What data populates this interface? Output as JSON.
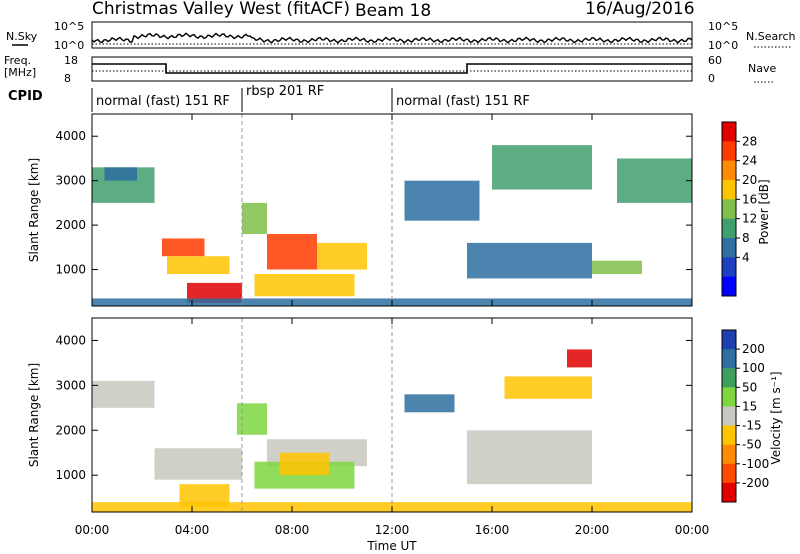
{
  "header": {
    "radar": "Christmas Valley West (fitACF)",
    "beam": "Beam 18",
    "date": "16/Aug/2016"
  },
  "top_panel": {
    "left_label": "N.Sky",
    "left_ticks": [
      "10^5",
      "10^0"
    ],
    "right_label": "N.Search",
    "right_ticks": [
      "10^5",
      "10^0"
    ]
  },
  "freq_panel": {
    "left_label_1": "Freq.",
    "left_label_2": "[MHz]",
    "left_ticks": [
      "18",
      "8"
    ],
    "right_label": "Nave",
    "right_ticks": [
      "60",
      "0"
    ]
  },
  "cpid": {
    "label": "CPID",
    "segments": [
      {
        "name": "normal (fast) 151 RF",
        "start_h": 0,
        "end_h": 6
      },
      {
        "name": "rbsp 201 RF",
        "start_h": 6,
        "end_h": 12
      },
      {
        "name": "normal (fast) 151 RF",
        "start_h": 12,
        "end_h": 24
      }
    ]
  },
  "axes": {
    "ylabel": "Slant Range [km]",
    "xlabel": "Time UT",
    "y_ticks": [
      "4000",
      "3000",
      "2000",
      "1000"
    ],
    "x_ticks": [
      "00:00",
      "04:00",
      "08:00",
      "12:00",
      "16:00",
      "20:00",
      "00:00"
    ]
  },
  "colorbars": {
    "power": {
      "label": "Power [dB]",
      "ticks": [
        "28",
        "24",
        "20",
        "16",
        "12",
        "8",
        "4"
      ],
      "colors": [
        "#e00000",
        "#ff3b00",
        "#ff8c00",
        "#ffc400",
        "#7fc04a",
        "#3f9f6f",
        "#2c6fa0",
        "#1e3fc0",
        "#0000ff"
      ]
    },
    "velocity": {
      "label": "Velocity [m s⁻¹]",
      "ticks": [
        "200",
        "100",
        "50",
        "15",
        "-15",
        "-50",
        "-100",
        "-200"
      ],
      "colors": [
        "#1f3fb0",
        "#2e6fa0",
        "#3f9f5f",
        "#7fd640",
        "#c8c8c0",
        "#ffc400",
        "#ff8c00",
        "#ff4a00",
        "#e00000"
      ]
    }
  },
  "chart_data": [
    {
      "type": "heatmap",
      "title": "Power [dB]",
      "xlabel": "Time UT",
      "ylabel": "Slant Range [km]",
      "xlim": [
        0,
        24
      ],
      "ylim": [
        180,
        4500
      ],
      "colorbar_range": [
        0,
        30
      ],
      "regions": [
        {
          "t0": 0.0,
          "t1": 2.5,
          "r0": 2500,
          "r1": 3300,
          "v": 12
        },
        {
          "t0": 0.5,
          "t1": 1.8,
          "r0": 3000,
          "r1": 3300,
          "v": 8
        },
        {
          "t0": 2.8,
          "t1": 4.5,
          "r0": 1300,
          "r1": 1700,
          "v": 26
        },
        {
          "t0": 3.0,
          "t1": 5.5,
          "r0": 900,
          "r1": 1300,
          "v": 20
        },
        {
          "t0": 3.8,
          "t1": 6.0,
          "r0": 250,
          "r1": 700,
          "v": 28
        },
        {
          "t0": 6.0,
          "t1": 7.0,
          "r0": 1800,
          "r1": 2500,
          "v": 16
        },
        {
          "t0": 7.0,
          "t1": 9.0,
          "r0": 1000,
          "r1": 1800,
          "v": 24
        },
        {
          "t0": 9.0,
          "t1": 11.0,
          "r0": 1000,
          "r1": 1600,
          "v": 18
        },
        {
          "t0": 6.5,
          "t1": 10.5,
          "r0": 400,
          "r1": 900,
          "v": 20
        },
        {
          "t0": 12.5,
          "t1": 15.5,
          "r0": 2100,
          "r1": 3000,
          "v": 10
        },
        {
          "t0": 15.0,
          "t1": 20.0,
          "r0": 800,
          "r1": 1600,
          "v": 10
        },
        {
          "t0": 16.0,
          "t1": 20.0,
          "r0": 2800,
          "r1": 3800,
          "v": 12
        },
        {
          "t0": 21.0,
          "t1": 24.0,
          "r0": 2500,
          "r1": 3500,
          "v": 12
        },
        {
          "t0": 20.0,
          "t1": 22.0,
          "r0": 900,
          "r1": 1200,
          "v": 16
        },
        {
          "t0": 0.0,
          "t1": 24.0,
          "r0": 180,
          "r1": 350,
          "v": 10
        }
      ]
    },
    {
      "type": "heatmap",
      "title": "Velocity [m s⁻¹]",
      "xlabel": "Time UT",
      "ylabel": "Slant Range [km]",
      "xlim": [
        0,
        24
      ],
      "ylim": [
        180,
        4500
      ],
      "colorbar_range": [
        -200,
        200
      ],
      "regions": [
        {
          "t0": 0.0,
          "t1": 2.5,
          "r0": 2500,
          "r1": 3100,
          "v": 0
        },
        {
          "t0": 2.5,
          "t1": 6.0,
          "r0": 900,
          "r1": 1600,
          "v": 0
        },
        {
          "t0": 3.5,
          "t1": 5.5,
          "r0": 300,
          "r1": 800,
          "v": -50
        },
        {
          "t0": 5.8,
          "t1": 7.0,
          "r0": 1900,
          "r1": 2600,
          "v": 50
        },
        {
          "t0": 7.0,
          "t1": 11.0,
          "r0": 1200,
          "r1": 1800,
          "v": 0
        },
        {
          "t0": 6.5,
          "t1": 10.5,
          "r0": 700,
          "r1": 1300,
          "v": 40
        },
        {
          "t0": 7.5,
          "t1": 9.5,
          "r0": 1000,
          "r1": 1500,
          "v": -40
        },
        {
          "t0": 12.5,
          "t1": 14.5,
          "r0": 2400,
          "r1": 2800,
          "v": 150
        },
        {
          "t0": 15.0,
          "t1": 20.0,
          "r0": 800,
          "r1": 2000,
          "v": 0
        },
        {
          "t0": 16.5,
          "t1": 20.0,
          "r0": 2700,
          "r1": 3200,
          "v": -60
        },
        {
          "t0": 19.0,
          "t1": 20.0,
          "r0": 3400,
          "r1": 3800,
          "v": -180
        },
        {
          "t0": 0.0,
          "t1": 24.0,
          "r0": 180,
          "r1": 400,
          "v": -30
        }
      ]
    }
  ]
}
